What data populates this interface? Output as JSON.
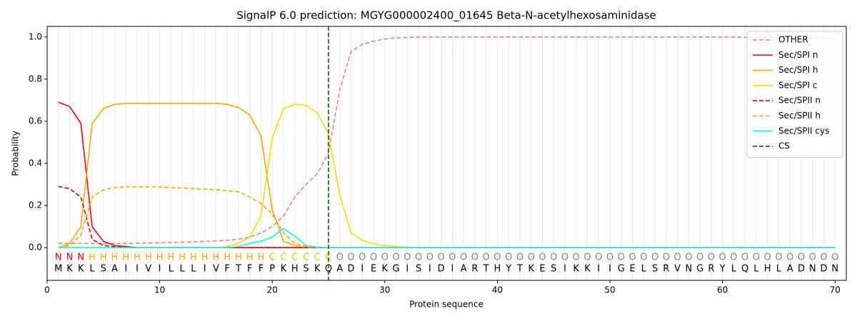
{
  "chart_data": {
    "type": "line",
    "title": "SignalP 6.0 prediction: MGYG000002400_01645 Beta-N-acetylhexosaminidase",
    "xlabel": "Protein sequence",
    "ylabel": "Probability",
    "x": [
      1,
      2,
      3,
      4,
      5,
      6,
      7,
      8,
      9,
      10,
      11,
      12,
      13,
      14,
      15,
      16,
      17,
      18,
      19,
      20,
      21,
      22,
      23,
      24,
      25,
      26,
      27,
      28,
      29,
      30,
      31,
      32,
      33,
      34,
      35,
      36,
      37,
      38,
      39,
      40,
      41,
      42,
      43,
      44,
      45,
      46,
      47,
      48,
      49,
      50,
      51,
      52,
      53,
      54,
      55,
      56,
      57,
      58,
      59,
      60,
      61,
      62,
      63,
      64,
      65,
      66,
      67,
      68,
      69,
      70
    ],
    "sequence": [
      "M",
      "K",
      "K",
      "L",
      "S",
      "A",
      "I",
      "I",
      "V",
      "I",
      "L",
      "L",
      "L",
      "I",
      "V",
      "F",
      "T",
      "F",
      "F",
      "P",
      "K",
      "H",
      "S",
      "K",
      "Q",
      "A",
      "D",
      "I",
      "E",
      "K",
      "G",
      "I",
      "S",
      "I",
      "D",
      "I",
      "A",
      "R",
      "T",
      "H",
      "Y",
      "T",
      "K",
      "E",
      "S",
      "I",
      "K",
      "K",
      "I",
      "I",
      "G",
      "E",
      "L",
      "S",
      "R",
      "V",
      "N",
      "G",
      "R",
      "Y",
      "L",
      "Q",
      "L",
      "H",
      "L",
      "A",
      "D",
      "N",
      "D",
      "N"
    ],
    "regions": [
      "N",
      "N",
      "N",
      "H",
      "H",
      "H",
      "H",
      "H",
      "H",
      "H",
      "H",
      "H",
      "H",
      "H",
      "H",
      "H",
      "H",
      "H",
      "H",
      "C",
      "C",
      "C",
      "C",
      "C",
      "C",
      "O",
      "O",
      "O",
      "O",
      "O",
      "O",
      "O",
      "O",
      "O",
      "O",
      "O",
      "O",
      "O",
      "O",
      "O",
      "O",
      "O",
      "O",
      "O",
      "O",
      "O",
      "O",
      "O",
      "O",
      "O",
      "O",
      "O",
      "O",
      "O",
      "O",
      "O",
      "O",
      "O",
      "O",
      "O",
      "O",
      "O",
      "O",
      "O",
      "O",
      "O",
      "O",
      "O",
      "O",
      "O"
    ],
    "region_colors": {
      "N": "#ff0000",
      "H": "#ffa500",
      "C": "#e6c200",
      "O": "#808080"
    },
    "series": [
      {
        "name": "OTHER",
        "color": "#f08080",
        "linestyle": "dashed",
        "values": [
          0.02,
          0.02,
          0.02,
          0.02,
          0.02,
          0.02,
          0.02,
          0.021,
          0.022,
          0.023,
          0.024,
          0.026,
          0.028,
          0.03,
          0.032,
          0.035,
          0.04,
          0.05,
          0.07,
          0.1,
          0.15,
          0.24,
          0.3,
          0.35,
          0.45,
          0.75,
          0.93,
          0.965,
          0.98,
          0.99,
          0.995,
          0.997,
          1,
          1,
          1,
          1,
          1,
          1,
          1,
          1,
          1,
          1,
          1,
          1,
          1,
          1,
          1,
          1,
          1,
          1,
          1,
          1,
          1,
          1,
          1,
          1,
          1,
          1,
          1,
          1,
          0.999,
          0.998,
          0.998,
          0.998,
          0.997,
          0.997,
          0.996,
          0.996,
          0.995,
          0.995
        ]
      },
      {
        "name": "Sec/SPI n",
        "color": "#ff0000",
        "linestyle": "solid",
        "values": [
          0.69,
          0.67,
          0.59,
          0.1,
          0.03,
          0.01,
          0.005,
          0,
          0,
          0,
          0,
          0,
          0,
          0,
          0,
          0,
          0,
          0,
          0,
          0,
          0,
          0,
          0,
          0,
          0,
          0,
          0,
          0,
          0,
          0,
          0,
          0,
          0,
          0,
          0,
          0,
          0,
          0,
          0,
          0,
          0,
          0,
          0,
          0,
          0,
          0,
          0,
          0,
          0,
          0,
          0,
          0,
          0,
          0,
          0,
          0,
          0,
          0,
          0,
          0,
          0,
          0,
          0,
          0,
          0,
          0,
          0,
          0,
          0,
          0
        ]
      },
      {
        "name": "Sec/SPI h",
        "color": "#ffa500",
        "linestyle": "solid",
        "values": [
          0,
          0.02,
          0.1,
          0.59,
          0.66,
          0.68,
          0.685,
          0.685,
          0.685,
          0.685,
          0.685,
          0.685,
          0.685,
          0.685,
          0.685,
          0.68,
          0.665,
          0.63,
          0.53,
          0.18,
          0.03,
          0.01,
          0,
          0,
          0,
          0,
          0,
          0,
          0,
          0,
          0,
          0,
          0,
          0,
          0,
          0,
          0,
          0,
          0,
          0,
          0,
          0,
          0,
          0,
          0,
          0,
          0,
          0,
          0,
          0,
          0,
          0,
          0,
          0,
          0,
          0,
          0,
          0,
          0,
          0,
          0,
          0,
          0,
          0,
          0,
          0,
          0,
          0,
          0,
          0
        ]
      },
      {
        "name": "Sec/SPI c",
        "color": "#ffd700",
        "linestyle": "solid",
        "values": [
          0,
          0,
          0,
          0,
          0,
          0,
          0,
          0,
          0,
          0,
          0,
          0,
          0,
          0,
          0,
          0.005,
          0.02,
          0.05,
          0.15,
          0.52,
          0.66,
          0.68,
          0.675,
          0.64,
          0.54,
          0.25,
          0.07,
          0.035,
          0.018,
          0.01,
          0.005,
          0.002,
          0,
          0,
          0,
          0,
          0,
          0,
          0,
          0,
          0,
          0,
          0,
          0,
          0,
          0,
          0,
          0,
          0,
          0,
          0,
          0,
          0,
          0,
          0,
          0,
          0,
          0,
          0,
          0,
          0,
          0,
          0,
          0,
          0,
          0,
          0,
          0,
          0,
          0
        ]
      },
      {
        "name": "Sec/SPII n",
        "color": "#dd0000",
        "linestyle": "dashed",
        "values": [
          0.29,
          0.28,
          0.24,
          0.04,
          0.01,
          0.005,
          0,
          0,
          0,
          0,
          0,
          0,
          0,
          0,
          0,
          0,
          0,
          0,
          0,
          0,
          0,
          0,
          0,
          0,
          0,
          0,
          0,
          0,
          0,
          0,
          0,
          0,
          0,
          0,
          0,
          0,
          0,
          0,
          0,
          0,
          0,
          0,
          0,
          0,
          0,
          0,
          0,
          0,
          0,
          0,
          0,
          0,
          0,
          0,
          0,
          0,
          0,
          0,
          0,
          0,
          0,
          0,
          0,
          0,
          0,
          0,
          0,
          0,
          0,
          0
        ]
      },
      {
        "name": "Sec/SPII h",
        "color": "#ffa500",
        "linestyle": "dashed",
        "values": [
          0,
          0.01,
          0.06,
          0.24,
          0.275,
          0.285,
          0.288,
          0.288,
          0.288,
          0.288,
          0.285,
          0.283,
          0.28,
          0.278,
          0.275,
          0.27,
          0.265,
          0.24,
          0.21,
          0.16,
          0.07,
          0.02,
          0.005,
          0,
          0,
          0,
          0,
          0,
          0,
          0,
          0,
          0,
          0,
          0,
          0,
          0,
          0,
          0,
          0,
          0,
          0,
          0,
          0,
          0,
          0,
          0,
          0,
          0,
          0,
          0,
          0,
          0,
          0,
          0,
          0,
          0,
          0,
          0,
          0,
          0,
          0,
          0,
          0,
          0,
          0,
          0,
          0,
          0,
          0,
          0
        ]
      },
      {
        "name": "Sec/SPII cys",
        "color": "#00ffff",
        "linestyle": "solid",
        "values": [
          0,
          0,
          0,
          0,
          0,
          0,
          0,
          0,
          0,
          0,
          0,
          0,
          0,
          0,
          0,
          0,
          0.005,
          0.02,
          0.03,
          0.05,
          0.09,
          0.055,
          0.01,
          0.003,
          0,
          0,
          0,
          0,
          0,
          0,
          0,
          0,
          0,
          0,
          0,
          0,
          0,
          0,
          0,
          0,
          0,
          0,
          0,
          0,
          0,
          0,
          0,
          0,
          0,
          0,
          0,
          0,
          0,
          0,
          0,
          0,
          0,
          0,
          0,
          0,
          0,
          0,
          0,
          0,
          0,
          0,
          0,
          0,
          0,
          0
        ]
      }
    ],
    "cs": {
      "name": "CS",
      "x": 25,
      "color": "#006400"
    },
    "xlim": [
      0,
      71
    ],
    "ylim": [
      -0.155,
      1.05
    ],
    "xticks": [
      0,
      10,
      20,
      30,
      40,
      50,
      60,
      70
    ],
    "yticks": [
      {
        "value": 0,
        "label": "0.0"
      },
      {
        "value": 0.2,
        "label": "0.2"
      },
      {
        "value": 0.4,
        "label": "0.4"
      },
      {
        "value": 0.6,
        "label": "0.6"
      },
      {
        "value": 0.8,
        "label": "0.8"
      },
      {
        "value": 1,
        "label": "1.0"
      }
    ],
    "legend": "upper right"
  }
}
